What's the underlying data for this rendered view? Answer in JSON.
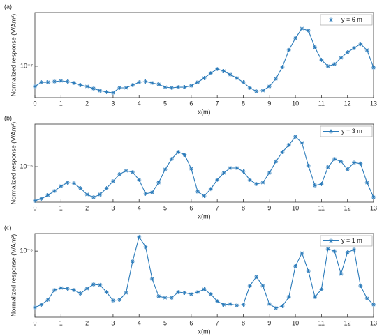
{
  "chart_data": [
    {
      "type": "line",
      "title": "(a)",
      "xlabel": "x(m)",
      "ylabel": "Normalized response (V/Am²)",
      "x": [
        0,
        0.25,
        0.5,
        0.75,
        1,
        1.25,
        1.5,
        1.75,
        2,
        2.25,
        2.5,
        2.75,
        3,
        3.25,
        3.5,
        3.75,
        4,
        4.25,
        4.5,
        4.75,
        5,
        5.25,
        5.5,
        5.75,
        6,
        6.25,
        6.5,
        6.75,
        7,
        7.25,
        7.5,
        7.75,
        8,
        8.25,
        8.5,
        8.75,
        9,
        9.25,
        9.5,
        9.75,
        10,
        10.25,
        10.5,
        10.75,
        11,
        11.25,
        11.5,
        11.75,
        12,
        12.25,
        12.5,
        12.75,
        13
      ],
      "series": [
        {
          "name": "y = 6 m",
          "color": "#2b7bba",
          "values": [
            5.08e-08,
            5.84e-08,
            5.84e-08,
            5.98e-08,
            6.12e-08,
            5.98e-08,
            5.71e-08,
            5.32e-08,
            5.08e-08,
            4.74e-08,
            4.42e-08,
            4.22e-08,
            4.12e-08,
            4.85e-08,
            4.85e-08,
            5.32e-08,
            5.84e-08,
            5.98e-08,
            5.71e-08,
            5.45e-08,
            4.96e-08,
            4.85e-08,
            4.96e-08,
            4.96e-08,
            5.2e-08,
            5.84e-08,
            6.72e-08,
            7.91e-08,
            9.1e-08,
            8.47e-08,
            7.55e-08,
            6.72e-08,
            5.84e-08,
            4.85e-08,
            4.32e-08,
            4.42e-08,
            5.08e-08,
            6.56e-08,
            9.75e-08,
            1.71e-07,
            2.54e-07,
            3.51e-07,
            3.27e-07,
            1.87e-07,
            1.23e-07,
            9.98e-08,
            1.07e-07,
            1.32e-07,
            1.59e-07,
            1.83e-07,
            2.1e-07,
            1.71e-07,
            9.53e-08
          ]
        }
      ],
      "xlim": [
        0,
        13
      ],
      "xticks": [
        0,
        1,
        2,
        3,
        4,
        5,
        6,
        7,
        8,
        9,
        10,
        11,
        12,
        13
      ],
      "ylim": [
        3.5e-08,
        6e-07
      ],
      "yticks": [
        {
          "value": 1e-07,
          "label": "10⁻⁷"
        }
      ],
      "ylog": true,
      "legend": "upper right"
    },
    {
      "type": "line",
      "title": "(b)",
      "xlabel": "x(m)",
      "ylabel": "Normalized response (V/Am²)",
      "x": [
        0,
        0.25,
        0.5,
        0.75,
        1,
        1.25,
        1.5,
        1.75,
        2,
        2.25,
        2.5,
        2.75,
        3,
        3.25,
        3.5,
        3.75,
        4,
        4.25,
        4.5,
        4.75,
        5,
        5.25,
        5.5,
        5.75,
        6,
        6.25,
        6.5,
        6.75,
        7,
        7.25,
        7.5,
        7.75,
        8,
        8.25,
        8.5,
        8.75,
        9,
        9.25,
        9.5,
        9.75,
        10,
        10.25,
        10.5,
        10.75,
        11,
        11.25,
        11.5,
        11.75,
        12,
        12.25,
        12.5,
        12.75,
        13
      ],
      "series": [
        {
          "name": "y = 3 m",
          "color": "#2b7bba",
          "values": [
            4.15e-07,
            4.38e-07,
            4.79e-07,
            5.33e-07,
            6.05e-07,
            6.62e-07,
            6.5e-07,
            5.73e-07,
            4.88e-07,
            4.54e-07,
            4.88e-07,
            5.73e-07,
            6.86e-07,
            8.21e-07,
            8.99e-07,
            8.67e-07,
            7.11e-07,
            4.97e-07,
            5.14e-07,
            6.62e-07,
            9.31e-07,
            1.22e-06,
            1.46e-06,
            1.36e-06,
            9.48e-07,
            5.24e-07,
            4.7e-07,
            5.62e-07,
            7.11e-07,
            8.51e-07,
            9.66e-07,
            9.66e-07,
            8.83e-07,
            7.11e-07,
            6.38e-07,
            6.62e-07,
            8.51e-07,
            1.14e-06,
            1.46e-06,
            1.75e-06,
            2.17e-06,
            1.85e-06,
            1.02e-06,
            6.16e-07,
            6.38e-07,
            9.84e-07,
            1.22e-06,
            1.14e-06,
            9.31e-07,
            1.11e-06,
            1.08e-06,
            6.62e-07,
            4.54e-07
          ]
        }
      ],
      "xlim": [
        0,
        13
      ],
      "xticks": [
        0,
        1,
        2,
        3,
        4,
        5,
        6,
        7,
        8,
        9,
        10,
        11,
        12,
        13
      ],
      "ylim": [
        4e-07,
        3e-06
      ],
      "yticks": [
        {
          "value": 1e-06,
          "label": "10⁻⁶"
        }
      ],
      "ylog": true,
      "legend": "upper right"
    },
    {
      "type": "line",
      "title": "(c)",
      "xlabel": "x(m)",
      "ylabel": "Normalized response (V/Am²)",
      "x": [
        0,
        0.25,
        0.5,
        0.75,
        1,
        1.25,
        1.5,
        1.75,
        2,
        2.25,
        2.5,
        2.75,
        3,
        3.25,
        3.5,
        3.75,
        4,
        4.25,
        4.5,
        4.75,
        5,
        5.25,
        5.5,
        5.75,
        6,
        6.25,
        6.5,
        6.75,
        7,
        7.25,
        7.5,
        7.75,
        8,
        8.25,
        8.5,
        8.75,
        9,
        9.25,
        9.5,
        9.75,
        10,
        10.25,
        10.5,
        10.75,
        11,
        11.25,
        11.5,
        11.75,
        12,
        12.25,
        12.5,
        12.75,
        13
      ],
      "series": [
        {
          "name": "y = 1 m",
          "color": "#2b7bba",
          "values": [
            2.21e-07,
            2.38e-07,
            2.71e-07,
            3.52e-07,
            3.72e-07,
            3.66e-07,
            3.52e-07,
            3.21e-07,
            3.66e-07,
            4.09e-07,
            4.02e-07,
            3.33e-07,
            2.66e-07,
            2.71e-07,
            3.27e-07,
            7.59e-07,
            1.46e-06,
            1.12e-06,
            4.75e-07,
            2.98e-07,
            2.86e-07,
            2.86e-07,
            3.33e-07,
            3.27e-07,
            3.15e-07,
            3.33e-07,
            3.59e-07,
            3.15e-07,
            2.61e-07,
            2.38e-07,
            2.42e-07,
            2.33e-07,
            2.38e-07,
            3.94e-07,
            5.02e-07,
            3.94e-07,
            2.42e-07,
            2.17e-07,
            2.29e-07,
            2.92e-07,
            6.65e-07,
            9.48e-07,
            5.83e-07,
            2.92e-07,
            3.59e-07,
            1.06e-06,
            1e-06,
            5.41e-07,
            9.66e-07,
            1.04e-06,
            3.94e-07,
            2.81e-07,
            2.38e-07
          ]
        }
      ],
      "xlim": [
        0,
        13
      ],
      "xticks": [
        0,
        1,
        2,
        3,
        4,
        5,
        6,
        7,
        8,
        9,
        10,
        11,
        12,
        13
      ],
      "ylim": [
        1.7e-07,
        1.6e-06
      ],
      "yticks": [
        {
          "value": 1e-06,
          "label": "10⁻⁶"
        }
      ],
      "ylog": true,
      "legend": "upper right"
    }
  ]
}
